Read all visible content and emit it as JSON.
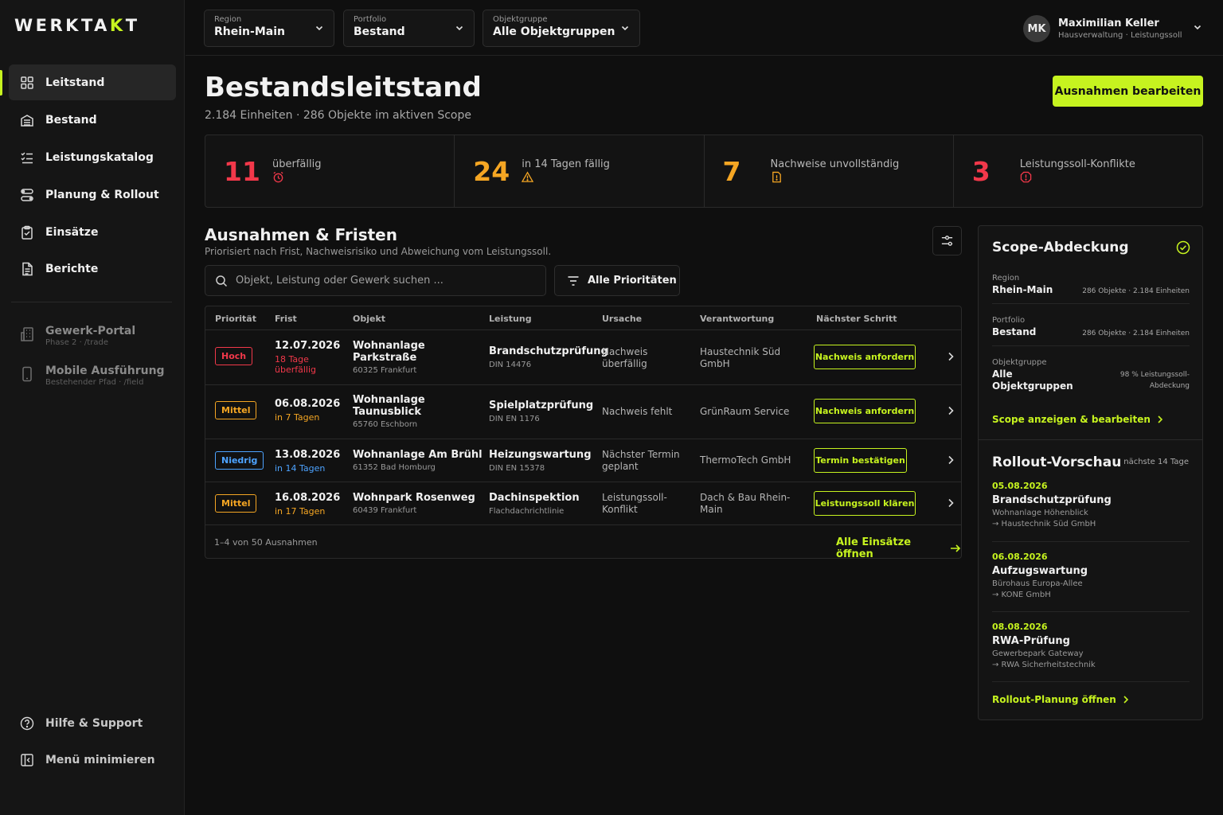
{
  "app": {
    "logo_pre": "WERKTA",
    "logo_acc": "K",
    "logo_post": "T"
  },
  "sidebar": {
    "items": [
      {
        "label": "Leitstand",
        "icon": "grid-icon"
      },
      {
        "label": "Bestand",
        "icon": "building-icon"
      },
      {
        "label": "Leistungskatalog",
        "icon": "checklist-icon"
      },
      {
        "label": "Planung & Rollout",
        "icon": "route-icon"
      },
      {
        "label": "Einsätze",
        "icon": "clipboard-check-icon"
      },
      {
        "label": "Berichte",
        "icon": "document-icon"
      }
    ],
    "external": [
      {
        "title": "Gewerk-Portal",
        "sub": "Phase 2 · /trade",
        "icon": "office-building-icon"
      },
      {
        "title": "Mobile Ausführung",
        "sub": "Bestehender Pfad · /field",
        "icon": "smartphone-icon"
      }
    ],
    "help": "Hilfe & Support",
    "collapse": "Menü minimieren"
  },
  "filters": {
    "region": {
      "label": "Region",
      "value": "Rhein-Main"
    },
    "portfolio": {
      "label": "Portfolio",
      "value": "Bestand"
    },
    "objektgruppe": {
      "label": "Objektgruppe",
      "value": "Alle Objektgruppen"
    }
  },
  "user": {
    "initials": "MK",
    "name": "Maximilian Keller",
    "role": "Hausverwaltung · Leistungssoll"
  },
  "page": {
    "title": "Bestandsleitstand",
    "subtitle": "2.184 Einheiten · 286 Objekte im aktiven Scope",
    "primary_button": "Ausnahmen bearbeiten"
  },
  "stats": [
    {
      "value": "11",
      "label": "überfällig",
      "color": "#f2384a",
      "icon": "alarm-clock-icon"
    },
    {
      "value": "24",
      "label": "in 14 Tagen fällig",
      "color": "#f5a623",
      "icon": "warning-icon"
    },
    {
      "value": "7",
      "label": "Nachweise unvollständig",
      "color": "#f5a623",
      "icon": "document-alert-icon"
    },
    {
      "value": "3",
      "label": "Leistungssoll-Konflikte",
      "color": "#f2384a",
      "icon": "alert-octagon-icon"
    }
  ],
  "section": {
    "title": "Ausnahmen & Fristen",
    "subtitle": "Priorisiert nach Frist, Nachweisrisiko und Abweichung vom Leistungssoll.",
    "search_placeholder": "Objekt, Leistung oder Gewerk suchen ...",
    "priority_filter": "Alle Prioritäten"
  },
  "table": {
    "columns": [
      "Priorität",
      "Frist",
      "Objekt",
      "Leistung",
      "Ursache",
      "Verantwortung",
      "Nächster Schritt"
    ],
    "rows": [
      {
        "priority": "Hoch",
        "prio_color": "#f2384a",
        "date": "12.07.2026",
        "date_sub": "18 Tage überfällig",
        "date_sub_color": "#f2384a",
        "object": "Wohnanlage Parkstraße",
        "object_sub": "60325 Frankfurt",
        "service": "Brandschutzprüfung",
        "service_sub": "DIN 14476",
        "cause": "Nachweis überfällig",
        "owner": "Haustechnik Süd GmbH",
        "action": "Nachweis anfordern"
      },
      {
        "priority": "Mittel",
        "prio_color": "#f5a623",
        "date": "06.08.2026",
        "date_sub": "in 7 Tagen",
        "date_sub_color": "#f5a623",
        "object": "Wohnanlage Taunusblick",
        "object_sub": "65760 Eschborn",
        "service": "Spielplatzprüfung",
        "service_sub": "DIN EN 1176",
        "cause": "Nachweis fehlt",
        "owner": "GrünRaum Service",
        "action": "Nachweis anfordern"
      },
      {
        "priority": "Niedrig",
        "prio_color": "#4da3ff",
        "date": "13.08.2026",
        "date_sub": "in 14 Tagen",
        "date_sub_color": "#4da3ff",
        "object": "Wohnanlage Am Brühl",
        "object_sub": "61352 Bad Homburg",
        "service": "Heizungswartung",
        "service_sub": "DIN EN 15378",
        "cause": "Nächster Termin geplant",
        "owner": "ThermoTech GmbH",
        "action": "Termin bestätigen"
      },
      {
        "priority": "Mittel",
        "prio_color": "#f5a623",
        "date": "16.08.2026",
        "date_sub": "in 17 Tagen",
        "date_sub_color": "#f5a623",
        "object": "Wohnpark Rosenweg",
        "object_sub": "60439 Frankfurt",
        "service": "Dachinspektion",
        "service_sub": "Flachdachrichtlinie",
        "cause": "Leistungssoll-Konflikt",
        "owner": "Dach & Bau Rhein-Main",
        "action": "Leistungssoll klären"
      }
    ],
    "footer": "1–4 von 50 Ausnahmen",
    "footer_link": "Alle Einsätze öffnen"
  },
  "scope": {
    "title": "Scope-Abdeckung",
    "items": [
      {
        "label": "Region",
        "value": "Rhein-Main",
        "meta": "286 Objekte · 2.184 Einheiten"
      },
      {
        "label": "Portfolio",
        "value": "Bestand",
        "meta": "286 Objekte · 2.184 Einheiten"
      },
      {
        "label": "Objektgruppe",
        "value": "Alle Objektgruppen",
        "meta": "98 % Leistungssoll-Abdeckung"
      }
    ],
    "link": "Scope anzeigen & bearbeiten"
  },
  "rollout": {
    "title": "Rollout-Vorschau",
    "range": "nächste 14 Tage",
    "items": [
      {
        "date": "05.08.2026",
        "title": "Brandschutzprüfung",
        "object": "Wohnanlage Höhenblick",
        "vendor": "→ Haustechnik Süd GmbH"
      },
      {
        "date": "06.08.2026",
        "title": "Aufzugswartung",
        "object": "Bürohaus Europa-Allee",
        "vendor": "→ KONE GmbH"
      },
      {
        "date": "08.08.2026",
        "title": "RWA-Prüfung",
        "object": "Gewerbepark Gateway",
        "vendor": "→ RWA Sicherheitstechnik"
      }
    ],
    "link": "Rollout-Planung öffnen"
  },
  "colors": {
    "accent": "#c6f31f",
    "danger": "#f2384a",
    "warning": "#f5a623",
    "info": "#4da3ff"
  }
}
